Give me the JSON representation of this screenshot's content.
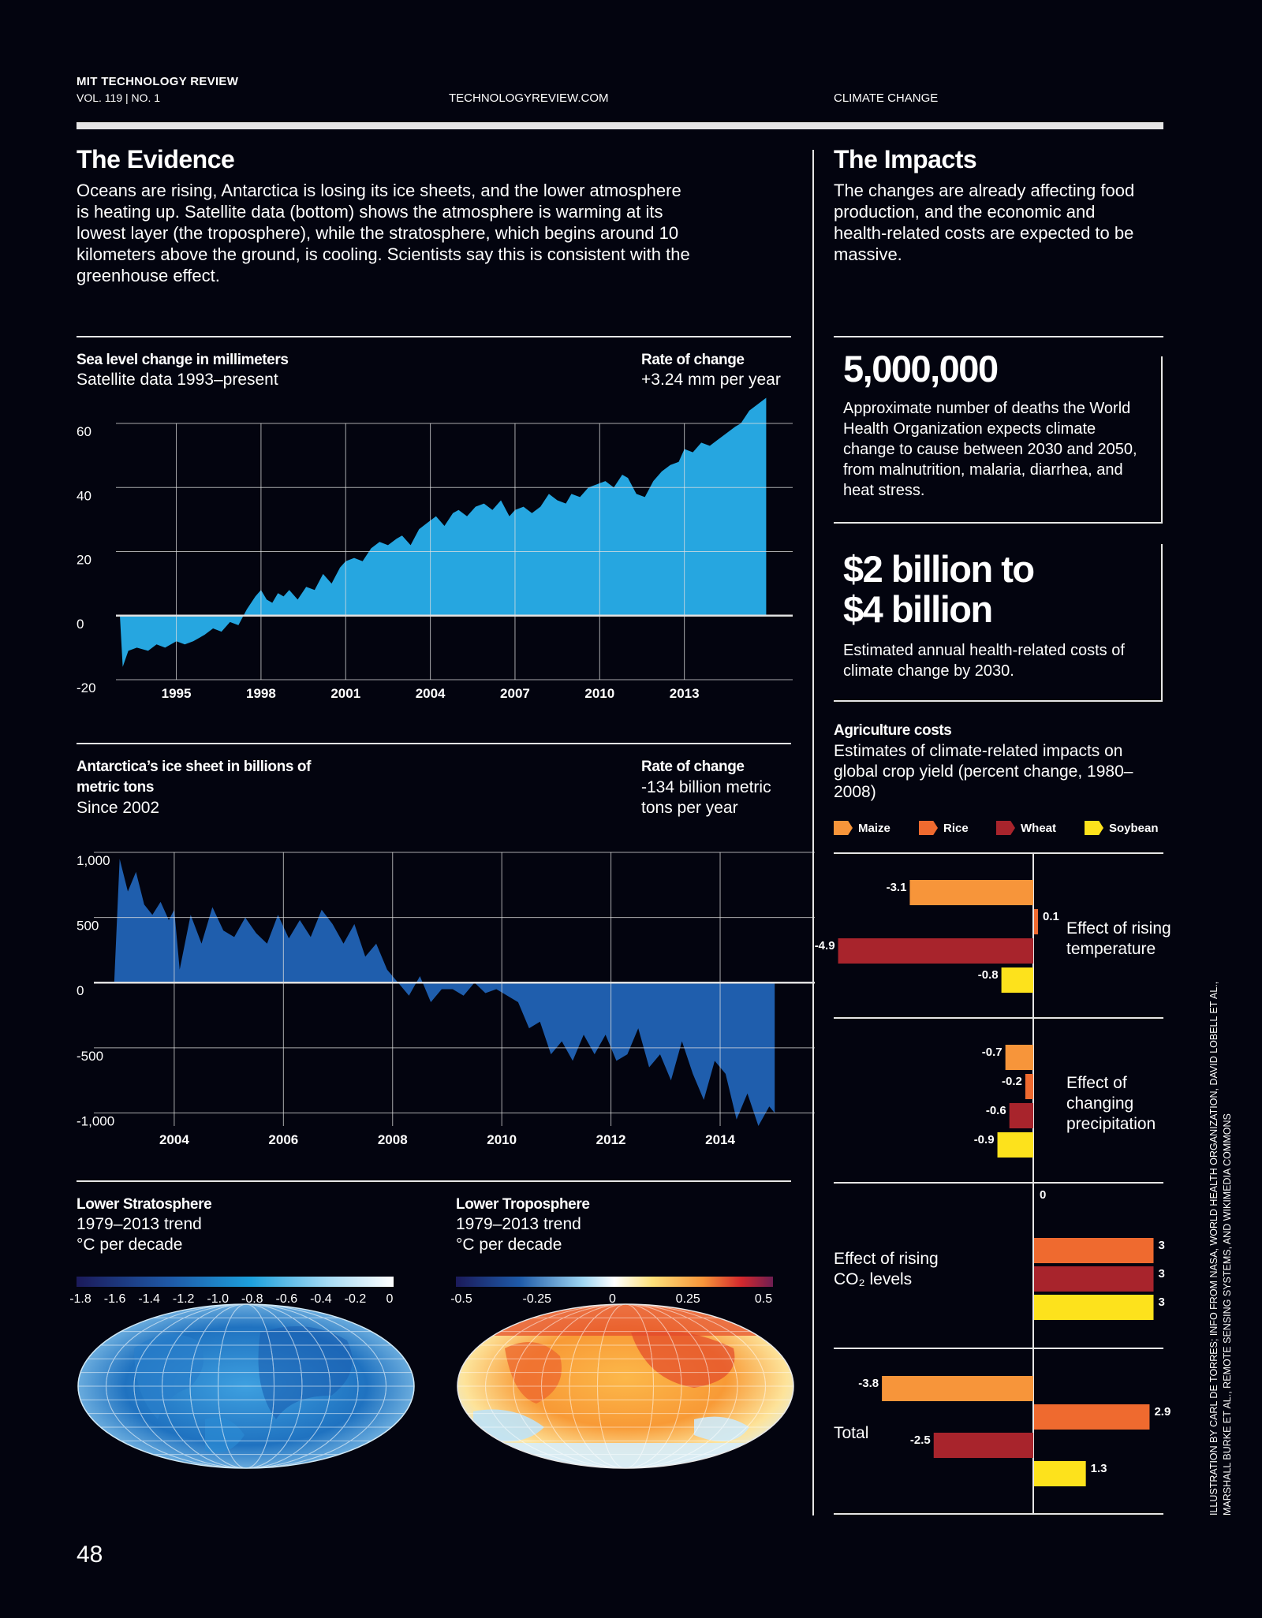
{
  "header": {
    "magazine": "MIT TECHNOLOGY REVIEW",
    "volume": "VOL. 119 | NO. 1",
    "site": "TECHNOLOGYREVIEW.COM",
    "section": "CLIMATE CHANGE"
  },
  "evidence": {
    "title": "The Evidence",
    "body": "Oceans are rising, Antarctica is losing its ice sheets, and the lower atmosphere is heating up. Satellite data (bottom) shows the atmosphere is warming at its lowest layer (the troposphere), while the stratosphere, which begins around 10 kilometers above the ground, is cooling. Scientists say this is consistent with the greenhouse effect."
  },
  "impacts": {
    "title": "The Impacts",
    "body": "The changes are already affecting food production, and the economic and health-related costs are expected to be massive.",
    "stat1_number": "5,000,000",
    "stat1_text": "Approximate number of deaths the World Health Organization expects climate change to cause between 2030 and 2050, from malnutrition, malaria, diarrhea, and heat stress.",
    "stat2_number_line1": "$2 billion to",
    "stat2_number_line2": "$4 billion",
    "stat2_text": "Estimated annual health-related costs of climate change by 2030."
  },
  "colors": {
    "background": "#03040f",
    "sea_level": "#26a6e0",
    "ice_sheet": "#1f5ead",
    "maize": "#f7953a",
    "rice": "#ef6a2f",
    "wheat": "#a8242c",
    "soybean": "#fde21c"
  },
  "chart_data": [
    {
      "type": "area",
      "title": "Sea level change in millimeters",
      "subtitle": "Satellite data 1993–present",
      "rate_title": "Rate of change",
      "rate_value": "+3.24 mm per year",
      "xlim": [
        1993,
        2016
      ],
      "ylim": [
        -20,
        60
      ],
      "x_ticks": [
        1995,
        1998,
        2001,
        2004,
        2007,
        2010,
        2013
      ],
      "x_tick_labels": [
        "1995",
        "1998",
        "2001",
        "2004",
        "2007",
        "2010",
        "2013"
      ],
      "y_ticks": [
        60,
        40,
        20,
        0,
        -20
      ],
      "y_tick_labels": [
        "60",
        "40",
        "20",
        "0",
        "-20"
      ],
      "grid": true,
      "x": [
        1993.0,
        1993.1,
        1993.3,
        1993.6,
        1994.0,
        1994.3,
        1994.6,
        1995.0,
        1995.3,
        1995.6,
        1996.0,
        1996.3,
        1996.6,
        1996.9,
        1997.2,
        1997.5,
        1997.8,
        1998.0,
        1998.2,
        1998.4,
        1998.6,
        1998.8,
        1999.0,
        1999.3,
        1999.6,
        1999.9,
        2000.2,
        2000.5,
        2000.8,
        2001.0,
        2001.3,
        2001.6,
        2001.9,
        2002.2,
        2002.5,
        2002.8,
        2003.0,
        2003.3,
        2003.6,
        2003.9,
        2004.2,
        2004.5,
        2004.8,
        2005.0,
        2005.3,
        2005.6,
        2005.9,
        2006.2,
        2006.5,
        2006.8,
        2007.0,
        2007.3,
        2007.6,
        2007.9,
        2008.2,
        2008.5,
        2008.8,
        2009.0,
        2009.3,
        2009.6,
        2009.9,
        2010.2,
        2010.5,
        2010.8,
        2011.0,
        2011.3,
        2011.6,
        2011.9,
        2012.2,
        2012.5,
        2012.8,
        2013.0,
        2013.3,
        2013.6,
        2013.9,
        2014.2,
        2014.5,
        2014.8,
        2015.0,
        2015.3,
        2015.6,
        2015.9
      ],
      "values": [
        0,
        -16,
        -11,
        -10,
        -11,
        -9,
        -10,
        -8,
        -9,
        -8,
        -6,
        -4,
        -5,
        -2,
        -3,
        2,
        6,
        8,
        5,
        4,
        7,
        6,
        8,
        5,
        9,
        8,
        13,
        10,
        15,
        17,
        18,
        17,
        21,
        23,
        22,
        24,
        25,
        22,
        27,
        29,
        31,
        28,
        32,
        33,
        31,
        34,
        35,
        33,
        36,
        31,
        33,
        34,
        32,
        34,
        38,
        36,
        35,
        38,
        37,
        40,
        41,
        42,
        40,
        44,
        43,
        38,
        37,
        42,
        45,
        47,
        48,
        52,
        51,
        54,
        53,
        55,
        57,
        59,
        60,
        64,
        66,
        68
      ]
    },
    {
      "type": "area",
      "title": "Antarctica’s ice sheet in billions of metric tons",
      "subtitle": "Since 2002",
      "rate_title": "Rate of change",
      "rate_value": "-134 billion metric tons per year",
      "xlim": [
        2002.6,
        2015.3
      ],
      "ylim": [
        -1100,
        1000
      ],
      "x_ticks": [
        2004,
        2006,
        2008,
        2010,
        2012,
        2014
      ],
      "x_tick_labels": [
        "2004",
        "2006",
        "2008",
        "2010",
        "2012",
        "2014"
      ],
      "y_ticks": [
        1000,
        500,
        0,
        -500,
        -1000
      ],
      "y_tick_labels": [
        "1,000",
        "500",
        "0",
        "-500",
        "-1,000"
      ],
      "grid": true,
      "x": [
        2002.9,
        2003.0,
        2003.15,
        2003.3,
        2003.45,
        2003.6,
        2003.75,
        2003.9,
        2004.0,
        2004.1,
        2004.3,
        2004.5,
        2004.7,
        2004.9,
        2005.1,
        2005.3,
        2005.5,
        2005.7,
        2005.9,
        2006.1,
        2006.3,
        2006.5,
        2006.7,
        2006.9,
        2007.1,
        2007.3,
        2007.5,
        2007.7,
        2007.9,
        2008.1,
        2008.3,
        2008.5,
        2008.7,
        2008.9,
        2009.1,
        2009.3,
        2009.5,
        2009.7,
        2009.9,
        2010.1,
        2010.3,
        2010.5,
        2010.7,
        2010.9,
        2011.1,
        2011.3,
        2011.5,
        2011.7,
        2011.9,
        2012.1,
        2012.3,
        2012.5,
        2012.7,
        2012.9,
        2013.1,
        2013.3,
        2013.5,
        2013.7,
        2013.9,
        2014.1,
        2014.3,
        2014.5,
        2014.7,
        2014.9,
        2015.0
      ],
      "values": [
        0,
        950,
        700,
        850,
        600,
        520,
        620,
        480,
        560,
        100,
        520,
        300,
        580,
        400,
        350,
        500,
        380,
        300,
        520,
        340,
        480,
        350,
        560,
        450,
        300,
        450,
        200,
        300,
        100,
        0,
        -100,
        50,
        -150,
        -50,
        -50,
        -100,
        0,
        -80,
        -50,
        -100,
        -150,
        -350,
        -300,
        -550,
        -450,
        -600,
        -400,
        -550,
        -400,
        -600,
        -550,
        -350,
        -650,
        -550,
        -750,
        -450,
        -700,
        -900,
        -600,
        -700,
        -1050,
        -850,
        -1100,
        -950,
        -1000
      ]
    },
    {
      "type": "heatmap",
      "title": "Lower Stratosphere",
      "subtitle_line1": "1979–2013 trend",
      "subtitle_line2": "°C per decade",
      "scale_labels": [
        "-1.8",
        "-1.6",
        "-1.4",
        "-1.2",
        "-1.0",
        "-0.8",
        "-0.6",
        "-0.4",
        "-0.2",
        "0"
      ],
      "range": [
        -1.8,
        0
      ]
    },
    {
      "type": "heatmap",
      "title": "Lower Troposphere",
      "subtitle_line1": "1979–2013 trend",
      "subtitle_line2": "°C per decade",
      "scale_labels": [
        "-0.5",
        "-0.25",
        "0",
        "0.25",
        "0.5"
      ],
      "range": [
        -0.5,
        0.5
      ]
    },
    {
      "type": "bar",
      "title": "Agriculture costs",
      "subtitle": "Estimates of climate-related impacts on global crop yield (percent change, 1980–2008)",
      "series_names": [
        "Maize",
        "Rice",
        "Wheat",
        "Soybean"
      ],
      "groups": [
        {
          "label": "Effect of rising temperature",
          "values": [
            -3.1,
            0.1,
            -4.9,
            -0.8
          ],
          "value_labels": [
            "-3.1",
            "0.1",
            "-4.9",
            "-0.8"
          ]
        },
        {
          "label": "Effect of changing precipitation",
          "values": [
            -0.7,
            -0.2,
            -0.6,
            -0.9
          ],
          "value_labels": [
            "-0.7",
            "-0.2",
            "-0.6",
            "-0.9"
          ]
        },
        {
          "label": "Effect of rising CO₂ levels",
          "values": [
            0,
            3,
            3,
            3
          ],
          "value_labels": [
            "0",
            "3",
            "3",
            "3"
          ]
        },
        {
          "label": "Total",
          "values": [
            -3.8,
            2.9,
            -2.5,
            1.3
          ],
          "value_labels": [
            "-3.8",
            "2.9",
            "-2.5",
            "1.3"
          ]
        }
      ]
    }
  ],
  "page_number": "48",
  "credit": "ILLUSTRATION BY CARL DE TORRES; INFO FROM NASA, WORLD HEALTH ORGANIZATION, DAVID LOBELL ET AL., MARSHALL BURKE ET AL., REMOTE SENSING SYSTEMS, AND WIKIMEDIA COMMONS"
}
